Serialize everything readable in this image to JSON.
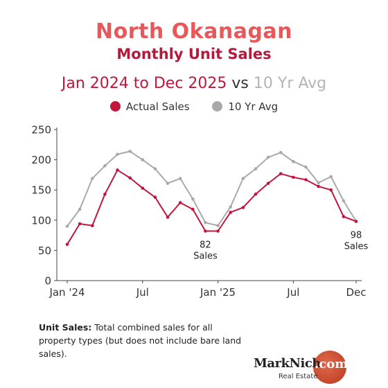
{
  "header": {
    "title": "North Okanagan",
    "subtitle": "Monthly Unit Sales",
    "range_text": "Jan 2024 to Dec 2025",
    "vs_text": "vs",
    "compare_text": "10 Yr Avg"
  },
  "note": {
    "label": "Unit Sales:",
    "text": "Total combined sales for all property types (but does not include bare land sales)."
  },
  "brand": {
    "name": "MarkNich",
    "suffix": ".com",
    "tagline": "Real Estate"
  },
  "colors": {
    "actual": "#c0163b",
    "average": "#a9a9a9",
    "axis": "#444444",
    "brand_orange": "#c9452a"
  },
  "chart_data": {
    "type": "line",
    "x": [
      "Jan '24",
      "Feb '24",
      "Mar '24",
      "Apr '24",
      "May '24",
      "Jun '24",
      "Jul '24",
      "Aug '24",
      "Sep '24",
      "Oct '24",
      "Nov '24",
      "Dec '24",
      "Jan '25",
      "Feb '25",
      "Mar '25",
      "Apr '25",
      "May '25",
      "Jun '25",
      "Jul '25",
      "Aug '25",
      "Sep '25",
      "Oct '25",
      "Nov '25",
      "Dec '25"
    ],
    "x_tick_labels": [
      {
        "index": 0,
        "label": "Jan '24"
      },
      {
        "index": 6,
        "label": "Jul"
      },
      {
        "index": 12,
        "label": "Jan '25"
      },
      {
        "index": 18,
        "label": "Jul"
      },
      {
        "index": 23,
        "label": "Dec"
      }
    ],
    "y_ticks": [
      0,
      50,
      100,
      150,
      200,
      250
    ],
    "ylim": [
      0,
      250
    ],
    "series": [
      {
        "name": "Actual Sales",
        "values": [
          60,
          94,
          91,
          143,
          183,
          170,
          153,
          138,
          105,
          129,
          118,
          82,
          82,
          113,
          121,
          143,
          161,
          177,
          171,
          167,
          156,
          150,
          106,
          98
        ]
      },
      {
        "name": "10 Yr Avg",
        "values": [
          90,
          118,
          169,
          190,
          209,
          214,
          200,
          185,
          161,
          169,
          135,
          96,
          91,
          122,
          169,
          185,
          204,
          212,
          197,
          188,
          162,
          172,
          132,
          98
        ]
      }
    ],
    "annotations": [
      {
        "series": 0,
        "index": 11,
        "line1": "82",
        "line2": "Sales"
      },
      {
        "series": 0,
        "index": 23,
        "line1": "98",
        "line2": "Sales"
      }
    ],
    "legend": "top-center",
    "grid": false
  }
}
